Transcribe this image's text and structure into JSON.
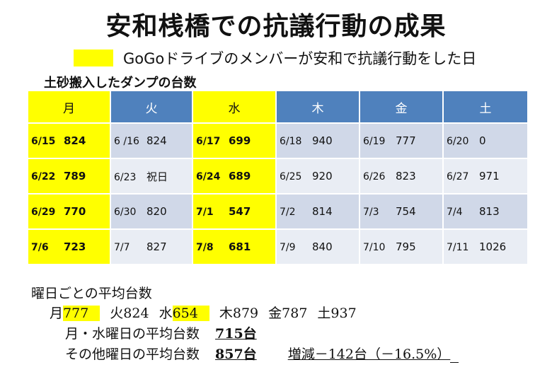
{
  "title": "安和桟橋での抗議行動の成果",
  "legend": {
    "color": "#ffff00",
    "text": "GoGoドライブのメンバーが安和で抗議行動をした日"
  },
  "subtitle": "土砂搬入したダンプの台数",
  "table": {
    "headers": [
      {
        "label": "月",
        "highlight": true
      },
      {
        "label": "火",
        "highlight": false
      },
      {
        "label": "水",
        "highlight": true
      },
      {
        "label": "木",
        "highlight": false
      },
      {
        "label": "金",
        "highlight": false
      },
      {
        "label": "土",
        "highlight": false
      }
    ],
    "rows": [
      [
        {
          "date": "6/15",
          "value": "824"
        },
        {
          "date": "6 /16",
          "value": "824"
        },
        {
          "date": "6/17",
          "value": "699"
        },
        {
          "date": "6/18",
          "value": "940"
        },
        {
          "date": "6/19",
          "value": "777"
        },
        {
          "date": "6/20",
          "value": "0"
        }
      ],
      [
        {
          "date": "6/22",
          "value": "789"
        },
        {
          "date": "6/23",
          "value": "祝日"
        },
        {
          "date": "6/24",
          "value": "689"
        },
        {
          "date": "6/25",
          "value": "920"
        },
        {
          "date": "6/26",
          "value": "823"
        },
        {
          "date": "6/27",
          "value": "971"
        }
      ],
      [
        {
          "date": "6/29",
          "value": "770"
        },
        {
          "date": "6/30",
          "value": "820"
        },
        {
          "date": "7/1",
          "value": "547"
        },
        {
          "date": "7/2",
          "value": "814"
        },
        {
          "date": "7/3",
          "value": "754"
        },
        {
          "date": "7/4",
          "value": "813"
        }
      ],
      [
        {
          "date": "7/6",
          "value": "723"
        },
        {
          "date": "7/7",
          "value": "827"
        },
        {
          "date": "7/8",
          "value": "681"
        },
        {
          "date": "7/9",
          "value": "840"
        },
        {
          "date": "7/10",
          "value": "795"
        },
        {
          "date": "7/11",
          "value": "1026"
        }
      ]
    ]
  },
  "averages": {
    "title": "曜日ごとの平均台数",
    "days": [
      {
        "day": "月",
        "value": "777",
        "highlight": true
      },
      {
        "day": "火",
        "value": "824",
        "highlight": false
      },
      {
        "day": "水",
        "value": "654",
        "highlight": true
      },
      {
        "day": "木",
        "value": "879",
        "highlight": false
      },
      {
        "day": "金",
        "value": "787",
        "highlight": false
      },
      {
        "day": "土",
        "value": "937",
        "highlight": false
      }
    ],
    "mon_wed_label": "月・水曜日の平均台数",
    "mon_wed_value": "715台",
    "other_label": "その他曜日の平均台数",
    "other_value": "857台",
    "change": "増減－142台（－16.5%）"
  }
}
